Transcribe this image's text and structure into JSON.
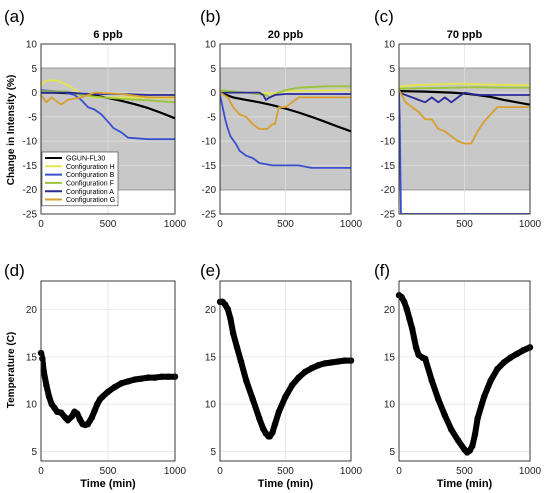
{
  "figure": {
    "panel_letters": [
      "(a)",
      "(b)",
      "(c)",
      "(d)",
      "(e)",
      "(f)"
    ],
    "top_ylabel": "Change in Intensity (%)",
    "bottom_ylabel": "Temperature (C)",
    "bottom_xlabel": "Time (min)"
  },
  "colors": {
    "GGUN-FL30": "#000000",
    "Configuration H": "#e5e54c",
    "Configuration B": "#3a4fd0",
    "Configuration F": "#9ac43a",
    "Configuration A": "#2a2a9a",
    "Configuration G": "#d6a030",
    "temperature": "#000000",
    "shaded_band": "#c8c8c8"
  },
  "chart_data": [
    {
      "type": "line",
      "panel": "(a)",
      "title": "6 ppb",
      "ylabel": "Change in Intensity (%)",
      "xlim": [
        0,
        1000
      ],
      "ylim": [
        -25,
        10
      ],
      "xticks": [
        0,
        500,
        1000
      ],
      "yticks": [
        -25,
        -20,
        -15,
        -10,
        -5,
        0,
        5,
        10
      ],
      "shaded_band": [
        -20,
        5
      ],
      "legend": "lower-left",
      "series": [
        {
          "name": "GGUN-FL30",
          "x": [
            0,
            100,
            200,
            300,
            400,
            500,
            600,
            700,
            800,
            900,
            1000
          ],
          "y": [
            0,
            0,
            -0.1,
            -0.3,
            -0.6,
            -1.1,
            -1.7,
            -2.4,
            -3.2,
            -4.2,
            -5.3
          ]
        },
        {
          "name": "Configuration H",
          "x": [
            0,
            30,
            60,
            120,
            200,
            260,
            300,
            400,
            500,
            700,
            1000
          ],
          "y": [
            1.5,
            2.3,
            2.5,
            2.5,
            1.5,
            0.5,
            -0.5,
            -1,
            -1,
            -1,
            -1.2
          ]
        },
        {
          "name": "Configuration B",
          "x": [
            0,
            150,
            250,
            300,
            350,
            400,
            450,
            500,
            540,
            600,
            650,
            800,
            1000
          ],
          "y": [
            0.5,
            0.2,
            -0.5,
            -1.5,
            -3,
            -3.5,
            -4.5,
            -6,
            -7.3,
            -8.2,
            -9.3,
            -9.6,
            -9.6
          ]
        },
        {
          "name": "Configuration F",
          "x": [
            0,
            200,
            300,
            400,
            500,
            600,
            800,
            1000
          ],
          "y": [
            0.3,
            0.2,
            -0.5,
            -0.8,
            -1.1,
            -1.3,
            -1.6,
            -2
          ]
        },
        {
          "name": "Configuration A",
          "x": [
            0,
            100,
            200,
            300,
            400,
            600,
            800,
            1000
          ],
          "y": [
            0,
            0,
            0,
            -0.2,
            -0.3,
            -0.3,
            -0.5,
            -0.5
          ]
        },
        {
          "name": "Configuration G",
          "x": [
            0,
            40,
            80,
            150,
            200,
            300,
            400,
            600,
            800,
            1000
          ],
          "y": [
            -0.5,
            -2,
            -1,
            -2.5,
            -1.5,
            -1,
            0,
            -0.3,
            -1,
            -1
          ]
        }
      ]
    },
    {
      "type": "line",
      "panel": "(b)",
      "title": "20 ppb",
      "xlim": [
        0,
        1000
      ],
      "ylim": [
        -25,
        10
      ],
      "xticks": [
        0,
        500,
        1000
      ],
      "yticks": [
        -25,
        -20,
        -15,
        -10,
        -5,
        0,
        5,
        10
      ],
      "shaded_band": [
        -20,
        5
      ],
      "series": [
        {
          "name": "GGUN-FL30",
          "x": [
            0,
            100,
            200,
            300,
            400,
            500,
            600,
            700,
            800,
            900,
            1000
          ],
          "y": [
            0,
            -1,
            -1.5,
            -2,
            -2.6,
            -3.3,
            -4.1,
            -5,
            -6,
            -7,
            -8
          ]
        },
        {
          "name": "Configuration H",
          "x": [
            0,
            200,
            400,
            500,
            1000
          ],
          "y": [
            0.2,
            0,
            -0.2,
            0.3,
            0.5
          ]
        },
        {
          "name": "Configuration B",
          "x": [
            0,
            20,
            40,
            60,
            80,
            120,
            150,
            200,
            250,
            300,
            400,
            500,
            600,
            700,
            800,
            1000
          ],
          "y": [
            -0.5,
            -3,
            -5.5,
            -7.5,
            -9,
            -10.5,
            -12,
            -13,
            -13.5,
            -14.5,
            -15,
            -15,
            -15,
            -15.5,
            -15.5,
            -15.5
          ]
        },
        {
          "name": "Configuration F",
          "x": [
            0,
            200,
            350,
            380,
            450,
            500,
            600,
            800,
            1000
          ],
          "y": [
            0.5,
            0,
            -0.5,
            -1,
            0,
            0.5,
            1,
            1.3,
            1.3
          ]
        },
        {
          "name": "Configuration A",
          "x": [
            0,
            200,
            300,
            330,
            350,
            380,
            420,
            500,
            1000
          ],
          "y": [
            0,
            0,
            0,
            -0.5,
            -1.5,
            -1,
            -0.5,
            -0.3,
            -0.3
          ]
        },
        {
          "name": "Configuration G",
          "x": [
            0,
            60,
            100,
            150,
            200,
            250,
            300,
            330,
            360,
            400,
            420,
            450,
            500,
            550,
            600,
            700,
            800,
            1000
          ],
          "y": [
            0,
            -1,
            -3,
            -4.5,
            -5,
            -6.5,
            -7.5,
            -7.5,
            -7.5,
            -6.5,
            -6.5,
            -3,
            -3,
            -2,
            -1,
            -1,
            -1,
            -1
          ]
        }
      ]
    },
    {
      "type": "line",
      "panel": "(c)",
      "title": "70 ppb",
      "xlim": [
        0,
        1000
      ],
      "ylim": [
        -25,
        10
      ],
      "xticks": [
        0,
        500,
        1000
      ],
      "yticks": [
        -25,
        -20,
        -15,
        -10,
        -5,
        0,
        5,
        10
      ],
      "shaded_band": [
        -20,
        5
      ],
      "series": [
        {
          "name": "GGUN-FL30",
          "x": [
            0,
            200,
            400,
            500,
            600,
            700,
            800,
            900,
            1000
          ],
          "y": [
            0.3,
            0.2,
            0,
            -0.2,
            -0.5,
            -0.9,
            -1.5,
            -2,
            -2.5
          ]
        },
        {
          "name": "Configuration H",
          "x": [
            0,
            100,
            200,
            400,
            500,
            600,
            800,
            1000
          ],
          "y": [
            1.2,
            1.5,
            1.6,
            1.8,
            1.8,
            1.7,
            1.6,
            1.5
          ]
        },
        {
          "name": "Configuration B",
          "x": [
            0,
            5,
            10,
            15,
            1000
          ],
          "y": [
            0,
            -5,
            -15,
            -25,
            -25
          ]
        },
        {
          "name": "Configuration F",
          "x": [
            0,
            200,
            400,
            600,
            800,
            1000
          ],
          "y": [
            0.8,
            0.9,
            1,
            1.1,
            1,
            1
          ]
        },
        {
          "name": "Configuration A",
          "x": [
            0,
            100,
            150,
            200,
            250,
            300,
            350,
            400,
            450,
            500,
            600,
            700,
            800,
            1000
          ],
          "y": [
            0,
            -1,
            -1.5,
            -2,
            -1,
            -2,
            -1,
            -2,
            -1,
            0,
            -0.5,
            -0.5,
            -0.5,
            -0.5
          ]
        },
        {
          "name": "Configuration G",
          "x": [
            0,
            50,
            100,
            150,
            200,
            250,
            300,
            350,
            400,
            450,
            500,
            550,
            600,
            650,
            700,
            750,
            800,
            1000
          ],
          "y": [
            0.5,
            -2,
            -3,
            -4,
            -5.5,
            -5.5,
            -7.5,
            -8,
            -9,
            -10,
            -10.5,
            -10.5,
            -8,
            -6,
            -4.5,
            -3,
            -3,
            -3
          ]
        }
      ]
    },
    {
      "type": "scatter",
      "panel": "(d)",
      "xlabel": "Time (min)",
      "ylabel": "Temperature (C)",
      "xlim": [
        0,
        1000
      ],
      "ylim": [
        4,
        23
      ],
      "xticks": [
        0,
        500,
        1000
      ],
      "yticks": [
        5,
        10,
        15,
        20
      ],
      "series": [
        {
          "name": "Temperature",
          "x": [
            0,
            10,
            20,
            40,
            60,
            80,
            100,
            120,
            150,
            180,
            200,
            230,
            250,
            270,
            290,
            310,
            330,
            350,
            380,
            400,
            420,
            440,
            460,
            500,
            550,
            600,
            650,
            700,
            750,
            800,
            850,
            900,
            950,
            1000
          ],
          "y": [
            15.4,
            14.8,
            13.5,
            12,
            10.8,
            10,
            9.6,
            9.2,
            9.1,
            8.6,
            8.3,
            8.7,
            9.2,
            9,
            8.4,
            7.9,
            7.8,
            7.9,
            8.6,
            9.3,
            10,
            10.5,
            10.8,
            11.3,
            11.8,
            12.2,
            12.4,
            12.6,
            12.7,
            12.8,
            12.8,
            12.9,
            12.9,
            12.9
          ]
        }
      ]
    },
    {
      "type": "scatter",
      "panel": "(e)",
      "xlabel": "Time (min)",
      "xlim": [
        0,
        1000
      ],
      "ylim": [
        4,
        23
      ],
      "xticks": [
        0,
        500,
        1000
      ],
      "yticks": [
        5,
        10,
        15,
        20
      ],
      "series": [
        {
          "name": "Temperature",
          "x": [
            0,
            20,
            40,
            60,
            80,
            100,
            130,
            160,
            200,
            250,
            300,
            330,
            350,
            370,
            380,
            400,
            420,
            450,
            500,
            550,
            600,
            650,
            700,
            750,
            800,
            850,
            900,
            950,
            1000
          ],
          "y": [
            20.8,
            20.8,
            20.5,
            20,
            19,
            17.5,
            16,
            14.5,
            12.5,
            10.5,
            8.5,
            7.4,
            6.9,
            6.6,
            6.6,
            7,
            7.9,
            9.2,
            10.8,
            12,
            12.8,
            13.4,
            13.8,
            14.1,
            14.3,
            14.4,
            14.5,
            14.6,
            14.6
          ]
        }
      ]
    },
    {
      "type": "scatter",
      "panel": "(f)",
      "xlabel": "Time (min)",
      "xlim": [
        0,
        1000
      ],
      "ylim": [
        4,
        23
      ],
      "xticks": [
        0,
        500,
        1000
      ],
      "yticks": [
        5,
        10,
        15,
        20
      ],
      "series": [
        {
          "name": "Temperature",
          "x": [
            0,
            20,
            40,
            60,
            80,
            100,
            130,
            150,
            180,
            200,
            250,
            300,
            350,
            400,
            450,
            500,
            520,
            540,
            560,
            580,
            600,
            650,
            700,
            750,
            800,
            850,
            900,
            950,
            1000
          ],
          "y": [
            21.5,
            21.3,
            20.8,
            20,
            19,
            18,
            16,
            15.2,
            14.9,
            14.8,
            12.5,
            10.5,
            8.8,
            7.3,
            6.2,
            5.2,
            4.9,
            5.1,
            5.6,
            6.8,
            8.5,
            10.8,
            12.5,
            13.7,
            14.4,
            14.9,
            15.3,
            15.7,
            16
          ]
        }
      ]
    }
  ]
}
